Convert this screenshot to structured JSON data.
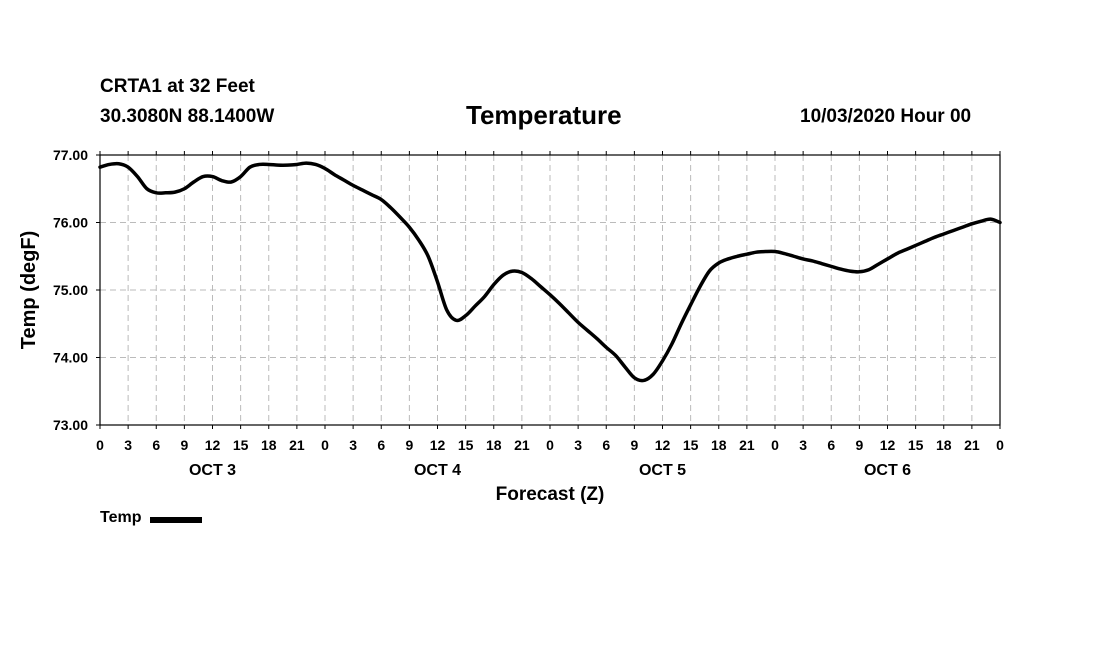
{
  "header": {
    "station": "CRTA1 at 32 Feet",
    "coords": "30.3080N 88.1400W",
    "title": "Temperature",
    "datetime": "10/03/2020 Hour 00"
  },
  "chart_data": {
    "type": "line",
    "title": "Temperature",
    "xlabel": "Forecast (Z)",
    "ylabel": "Temp (degF)",
    "ylim": [
      73,
      77
    ],
    "xlim": [
      0,
      96
    ],
    "x_unit": "hours from 10/03/2020 00Z",
    "y_ticks": [
      "73.00",
      "74.00",
      "75.00",
      "76.00",
      "77.00"
    ],
    "x_ticks": [
      "0",
      "3",
      "6",
      "9",
      "12",
      "15",
      "18",
      "21",
      "0",
      "3",
      "6",
      "9",
      "12",
      "15",
      "18",
      "21",
      "0",
      "3",
      "6",
      "9",
      "12",
      "15",
      "18",
      "21",
      "0",
      "3",
      "6",
      "9",
      "12",
      "15",
      "18",
      "21",
      "0"
    ],
    "day_labels": [
      "OCT 3",
      "OCT 4",
      "OCT 5",
      "OCT 6"
    ],
    "grid": true,
    "legend": "bottom-left",
    "series": [
      {
        "name": "Temp",
        "color": "#000000",
        "x": [
          0,
          1,
          2,
          3,
          4,
          5,
          6,
          7,
          8,
          9,
          10,
          11,
          12,
          13,
          14,
          15,
          16,
          17,
          18,
          19,
          20,
          21,
          22,
          23,
          24,
          25,
          26,
          27,
          28,
          29,
          30,
          31,
          32,
          33,
          34,
          35,
          36,
          37,
          38,
          39,
          40,
          41,
          42,
          43,
          44,
          45,
          46,
          47,
          48,
          49,
          50,
          51,
          52,
          53,
          54,
          55,
          56,
          57,
          58,
          59,
          60,
          61,
          62,
          63,
          64,
          65,
          66,
          67,
          68,
          69,
          70,
          71,
          72,
          73,
          74,
          75,
          76,
          77,
          78,
          79,
          80,
          81,
          82,
          83,
          84,
          85,
          86,
          87,
          88,
          89,
          90,
          91,
          92,
          93,
          94,
          95,
          96
        ],
        "values": [
          76.82,
          76.86,
          76.87,
          76.82,
          76.68,
          76.5,
          76.44,
          76.44,
          76.45,
          76.5,
          76.6,
          76.68,
          76.68,
          76.62,
          76.6,
          76.68,
          76.82,
          76.86,
          76.86,
          76.85,
          76.85,
          76.86,
          76.88,
          76.86,
          76.8,
          76.71,
          76.63,
          76.55,
          76.48,
          76.41,
          76.34,
          76.22,
          76.08,
          75.93,
          75.74,
          75.5,
          75.12,
          74.7,
          74.55,
          74.62,
          74.76,
          74.9,
          75.08,
          75.22,
          75.28,
          75.26,
          75.17,
          75.05,
          74.93,
          74.8,
          74.66,
          74.52,
          74.4,
          74.28,
          74.15,
          74.03,
          73.86,
          73.7,
          73.66,
          73.75,
          73.95,
          74.2,
          74.5,
          74.78,
          75.05,
          75.28,
          75.4,
          75.46,
          75.5,
          75.53,
          75.56,
          75.57,
          75.57,
          75.54,
          75.5,
          75.46,
          75.43,
          75.39,
          75.35,
          75.31,
          75.28,
          75.27,
          75.3,
          75.38,
          75.46,
          75.54,
          75.6,
          75.66,
          75.72,
          75.78,
          75.83,
          75.88,
          75.93,
          75.98,
          76.02,
          76.05,
          76.0
        ]
      }
    ]
  }
}
